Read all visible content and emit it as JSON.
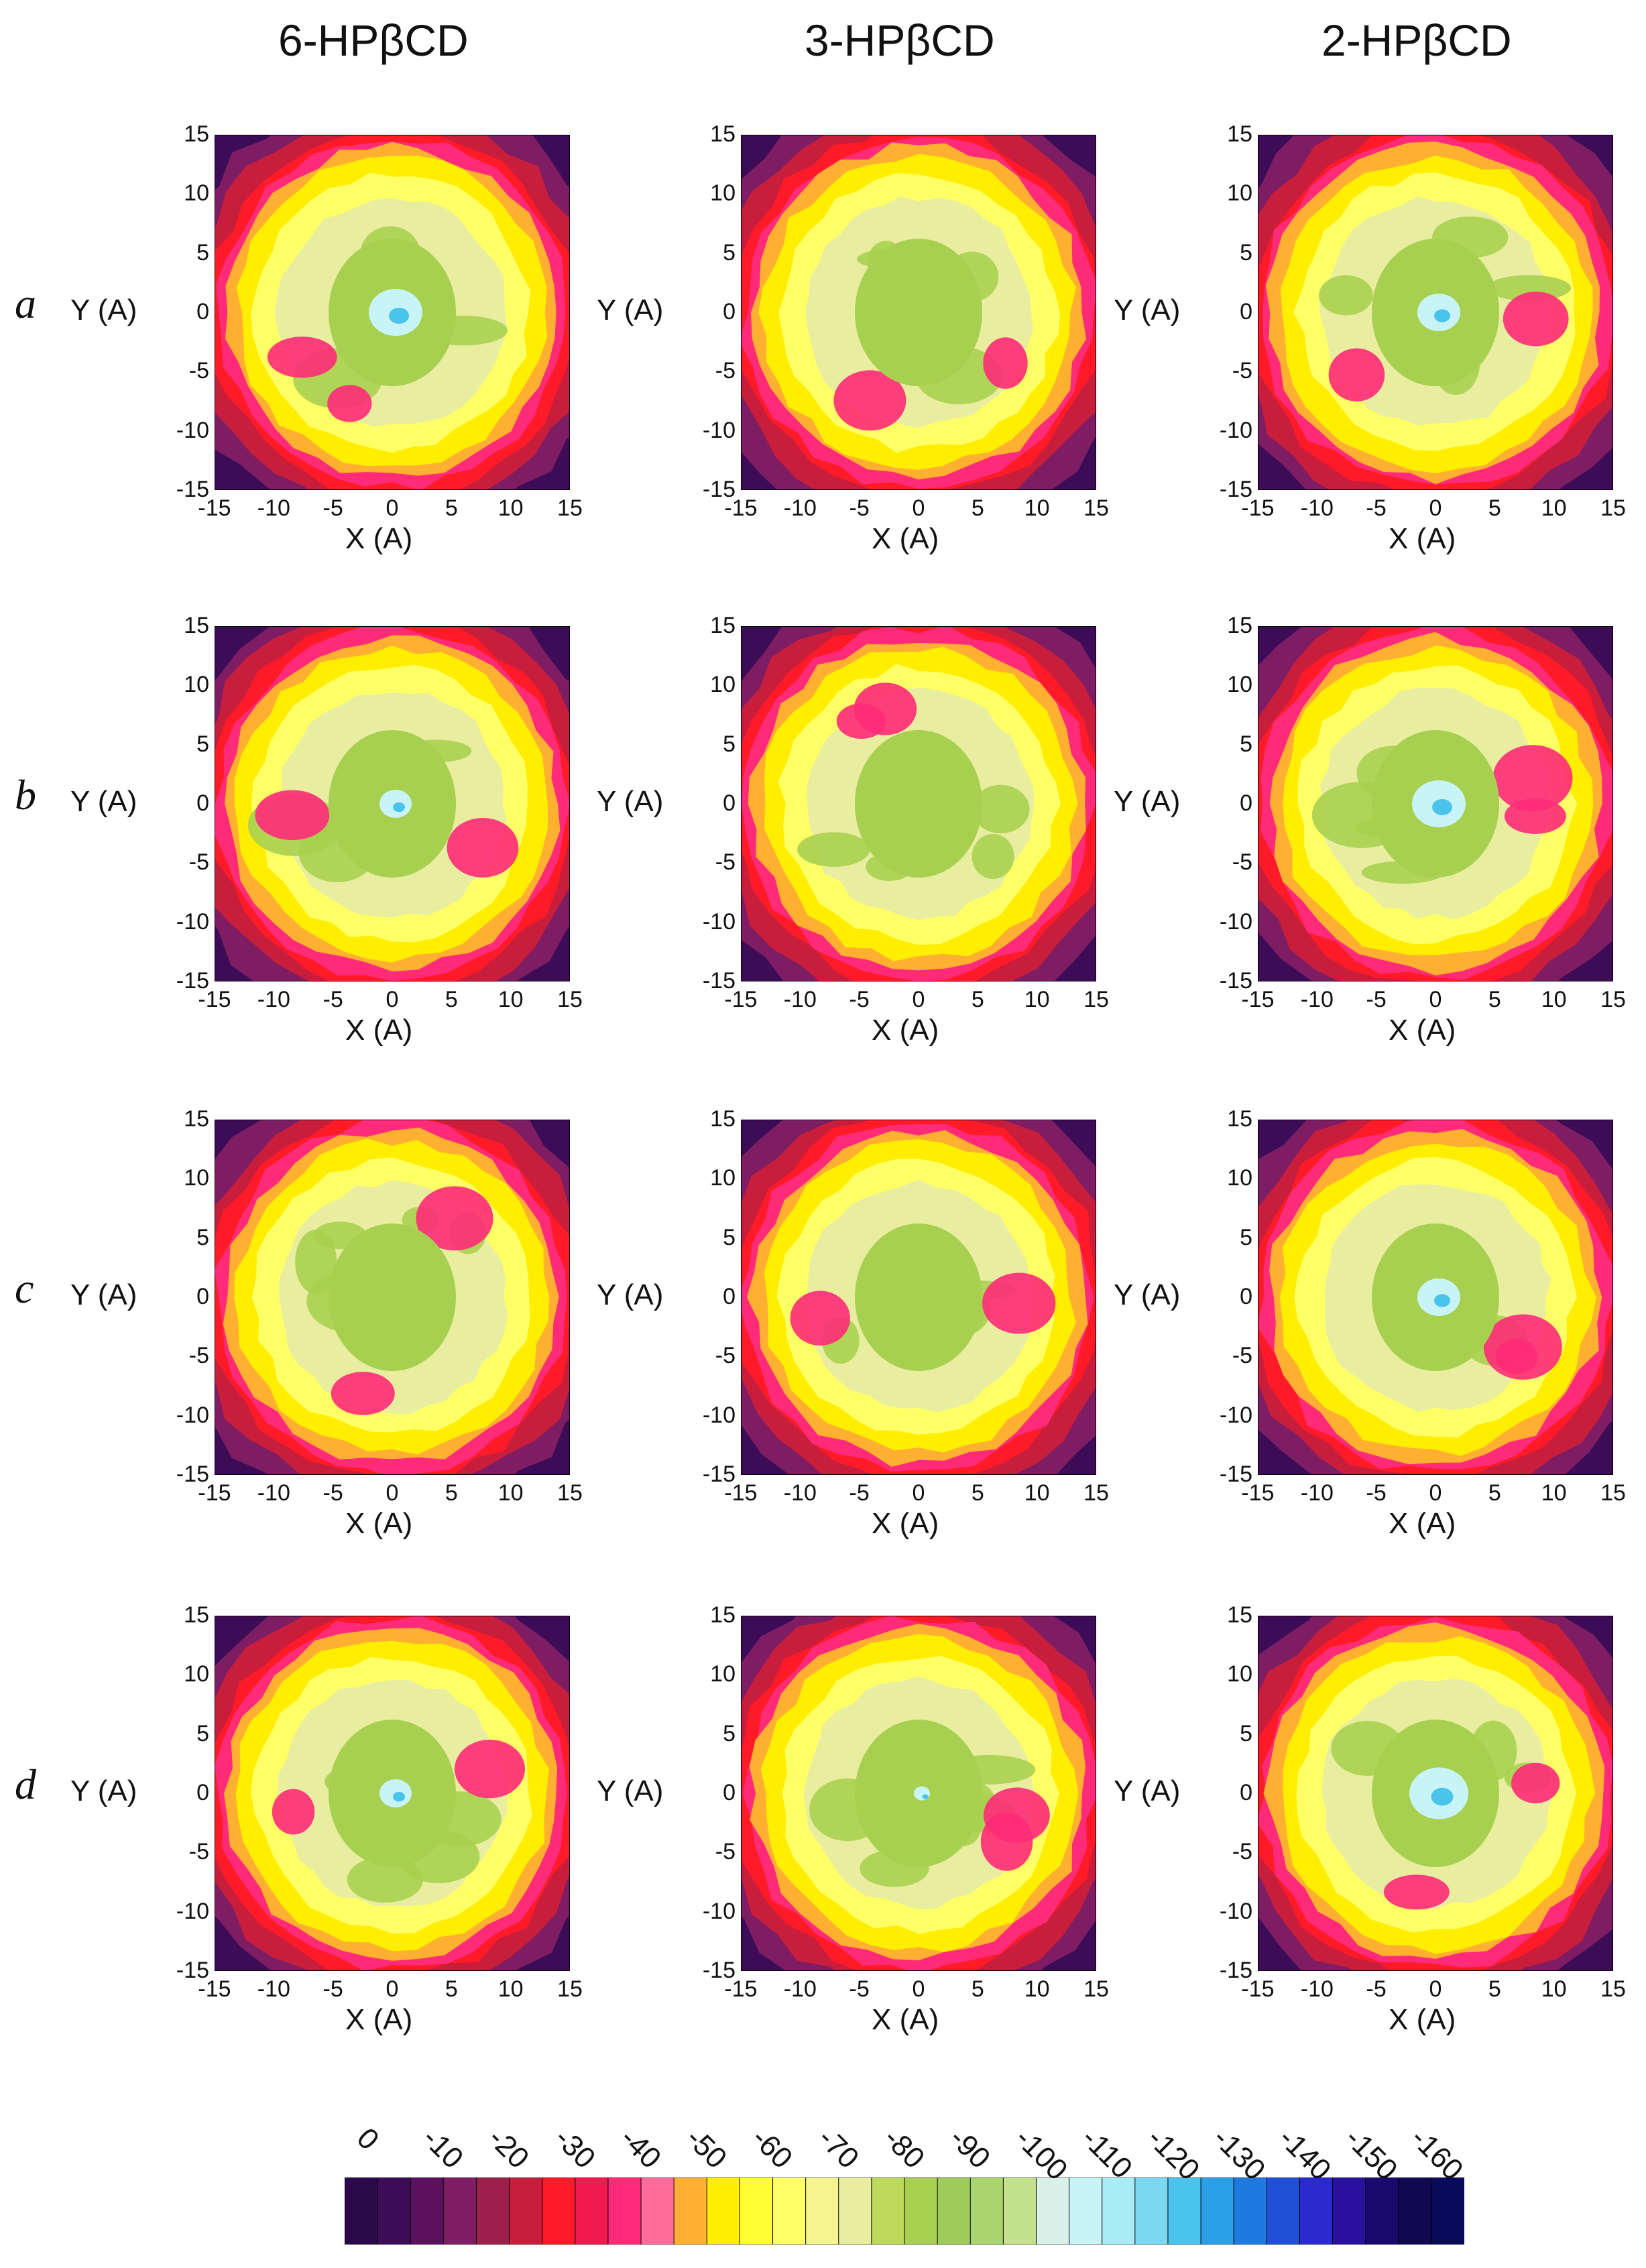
{
  "chart_data": {
    "type": "heatmap",
    "columns": [
      "6-HPβCD",
      "3-HPβCD",
      "2-HPβCD"
    ],
    "rows": [
      "a",
      "b",
      "c",
      "d"
    ],
    "xlabel": "X (A)",
    "ylabel": "Y (A)",
    "xlim": [
      -15,
      15
    ],
    "ylim": [
      -15,
      15
    ],
    "x_ticks": [
      -15,
      -10,
      -5,
      0,
      5,
      10,
      15
    ],
    "y_ticks": [
      15,
      10,
      5,
      0,
      -5,
      -10,
      -15
    ],
    "colorbar": {
      "levels": [
        0,
        -10,
        -20,
        -30,
        -40,
        -50,
        -60,
        -70,
        -80,
        -90,
        -100,
        -110,
        -120,
        -130,
        -140,
        -150,
        -160
      ],
      "colors": [
        "#2a0a4a",
        "#3d0c57",
        "#5c1160",
        "#7e1d63",
        "#9c1f4c",
        "#c81e3c",
        "#ff1a28",
        "#f01a50",
        "#ff2a78",
        "#ff6b9a",
        "#ffb030",
        "#ffee00",
        "#ffff33",
        "#ffff66",
        "#f5f590",
        "#e8eda0",
        "#bcd95a",
        "#a8d050",
        "#9dcc5a",
        "#a9d46e",
        "#c3e08c",
        "#d8f0e8",
        "#c8f4f8",
        "#a8ecf6",
        "#7ad8f0",
        "#4ac4ec",
        "#2aa0e8",
        "#1e7ae0",
        "#2050d8",
        "#2a2ad0",
        "#2a10a0",
        "#1a0a70",
        "#100850",
        "#0a0a5a"
      ]
    }
  }
}
